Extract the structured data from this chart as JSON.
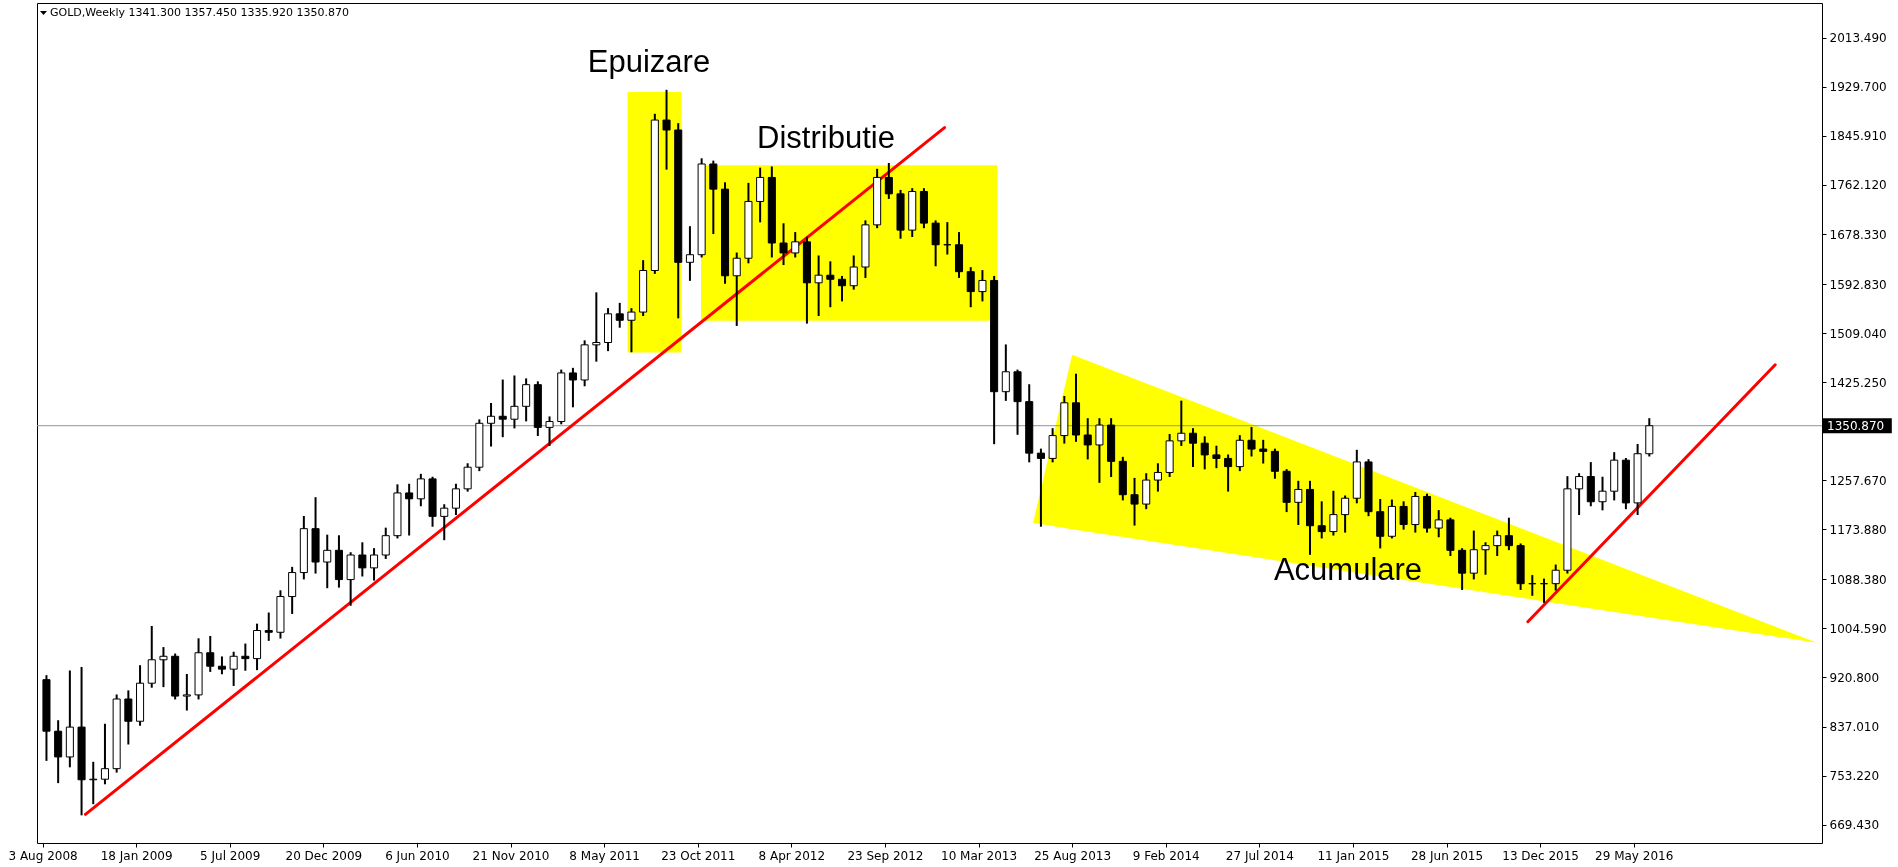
{
  "chart_data": {
    "type": "candlestick",
    "title": "GOLD,Weekly 1341.300 1357.450 1335.920 1350.870",
    "color": "#000000",
    "x": [
      "2008-08-10",
      "2008-08-31",
      "2008-09-21",
      "2008-10-12",
      "2008-11-02",
      "2008-11-23",
      "2008-12-14",
      "2009-01-04",
      "2009-01-25",
      "2009-02-15",
      "2009-03-08",
      "2009-03-29",
      "2009-04-19",
      "2009-05-10",
      "2009-05-31",
      "2009-06-21",
      "2009-07-12",
      "2009-08-02",
      "2009-08-23",
      "2009-09-13",
      "2009-10-04",
      "2009-10-25",
      "2009-11-15",
      "2009-12-06",
      "2009-12-27",
      "2010-01-17",
      "2010-02-07",
      "2010-02-28",
      "2010-03-21",
      "2010-04-11",
      "2010-05-02",
      "2010-05-23",
      "2010-06-13",
      "2010-07-04",
      "2010-07-25",
      "2010-08-15",
      "2010-09-05",
      "2010-09-26",
      "2010-10-17",
      "2010-11-07",
      "2010-11-28",
      "2010-12-19",
      "2011-01-09",
      "2011-01-30",
      "2011-02-20",
      "2011-03-13",
      "2011-04-03",
      "2011-04-24",
      "2011-05-15",
      "2011-06-05",
      "2011-06-26",
      "2011-07-17",
      "2011-08-07",
      "2011-08-28",
      "2011-09-18",
      "2011-10-09",
      "2011-10-30",
      "2011-11-20",
      "2011-12-11",
      "2012-01-01",
      "2012-01-22",
      "2012-02-12",
      "2012-03-04",
      "2012-03-25",
      "2012-04-15",
      "2012-05-06",
      "2012-05-27",
      "2012-06-17",
      "2012-07-08",
      "2012-07-29",
      "2012-08-19",
      "2012-09-09",
      "2012-09-30",
      "2012-10-21",
      "2012-11-11",
      "2012-12-02",
      "2012-12-23",
      "2013-01-13",
      "2013-02-03",
      "2013-02-24",
      "2013-03-17",
      "2013-04-07",
      "2013-04-28",
      "2013-05-19",
      "2013-06-09",
      "2013-06-30",
      "2013-07-21",
      "2013-08-11",
      "2013-09-01",
      "2013-09-22",
      "2013-10-13",
      "2013-11-03",
      "2013-11-24",
      "2013-12-15",
      "2014-01-05",
      "2014-01-26",
      "2014-02-16",
      "2014-03-09",
      "2014-03-30",
      "2014-04-20",
      "2014-05-11",
      "2014-06-01",
      "2014-06-22",
      "2014-07-13",
      "2014-08-03",
      "2014-08-24",
      "2014-09-14",
      "2014-10-05",
      "2014-10-26",
      "2014-11-16",
      "2014-12-07",
      "2014-12-28",
      "2015-01-18",
      "2015-02-08",
      "2015-03-01",
      "2015-03-22",
      "2015-04-12",
      "2015-05-03",
      "2015-05-24",
      "2015-06-14",
      "2015-07-05",
      "2015-07-26",
      "2015-08-16",
      "2015-09-06",
      "2015-09-27",
      "2015-10-18",
      "2015-11-08",
      "2015-11-29",
      "2015-12-20",
      "2016-01-10",
      "2016-01-31",
      "2016-02-21",
      "2016-03-13",
      "2016-04-03",
      "2016-04-24",
      "2016-05-15",
      "2016-06-05",
      "2016-06-26"
    ],
    "ohlc": [
      [
        917,
        923,
        780,
        829
      ],
      [
        829,
        846,
        742,
        785
      ],
      [
        785,
        931,
        769,
        836
      ],
      [
        836,
        937,
        687,
        746
      ],
      [
        746,
        775,
        706,
        747
      ],
      [
        747,
        840,
        740,
        765
      ],
      [
        765,
        890,
        760,
        884
      ],
      [
        884,
        897,
        808,
        846
      ],
      [
        846,
        940,
        840,
        911
      ],
      [
        911,
        1007,
        905,
        951
      ],
      [
        951,
        971,
        906,
        957
      ],
      [
        957,
        960,
        885,
        889
      ],
      [
        889,
        925,
        866,
        891
      ],
      [
        891,
        986,
        885,
        963
      ],
      [
        963,
        990,
        932,
        940
      ],
      [
        940,
        955,
        928,
        935
      ],
      [
        935,
        963,
        908,
        957
      ],
      [
        957,
        977,
        934,
        953
      ],
      [
        953,
        1011,
        935,
        1001
      ],
      [
        1001,
        1030,
        985,
        998
      ],
      [
        998,
        1068,
        989,
        1059
      ],
      [
        1059,
        1108,
        1031,
        1100
      ],
      [
        1100,
        1195,
        1090,
        1175
      ],
      [
        1175,
        1227,
        1100,
        1118
      ],
      [
        1118,
        1163,
        1075,
        1138
      ],
      [
        1138,
        1162,
        1076,
        1088
      ],
      [
        1088,
        1133,
        1045,
        1130
      ],
      [
        1130,
        1150,
        1095,
        1108
      ],
      [
        1108,
        1140,
        1088,
        1130
      ],
      [
        1130,
        1175,
        1125,
        1163
      ],
      [
        1163,
        1249,
        1160,
        1236
      ],
      [
        1236,
        1250,
        1165,
        1226
      ],
      [
        1226,
        1267,
        1215,
        1260
      ],
      [
        1260,
        1262,
        1180,
        1196
      ],
      [
        1196,
        1215,
        1157,
        1210
      ],
      [
        1210,
        1250,
        1200,
        1243
      ],
      [
        1243,
        1285,
        1240,
        1280
      ],
      [
        1280,
        1360,
        1275,
        1355
      ],
      [
        1355,
        1388,
        1317,
        1367
      ],
      [
        1367,
        1428,
        1333,
        1362
      ],
      [
        1362,
        1435,
        1348,
        1384
      ],
      [
        1384,
        1430,
        1360,
        1421
      ],
      [
        1421,
        1425,
        1335,
        1348
      ],
      [
        1348,
        1365,
        1318,
        1358
      ],
      [
        1358,
        1445,
        1355,
        1441
      ],
      [
        1441,
        1448,
        1384,
        1429
      ],
      [
        1429,
        1495,
        1420,
        1489
      ],
      [
        1489,
        1577,
        1462,
        1493
      ],
      [
        1493,
        1550,
        1480,
        1542
      ],
      [
        1542,
        1559,
        1520,
        1531
      ],
      [
        1531,
        1550,
        1478,
        1545
      ],
      [
        1545,
        1632,
        1540,
        1616
      ],
      [
        1616,
        1882,
        1612,
        1873
      ],
      [
        1873,
        1923,
        1790,
        1856
      ],
      [
        1856,
        1866,
        1536,
        1630
      ],
      [
        1630,
        1690,
        1600,
        1643
      ],
      [
        1643,
        1806,
        1640,
        1798
      ],
      [
        1798,
        1802,
        1680,
        1755
      ],
      [
        1755,
        1765,
        1595,
        1607
      ],
      [
        1607,
        1645,
        1523,
        1637
      ],
      [
        1637,
        1764,
        1630,
        1734
      ],
      [
        1734,
        1790,
        1700,
        1775
      ],
      [
        1775,
        1792,
        1640,
        1663
      ],
      [
        1663,
        1695,
        1627,
        1646
      ],
      [
        1646,
        1680,
        1640,
        1665
      ],
      [
        1665,
        1672,
        1527,
        1595
      ],
      [
        1595,
        1640,
        1540,
        1608
      ],
      [
        1608,
        1630,
        1555,
        1601
      ],
      [
        1601,
        1605,
        1565,
        1590
      ],
      [
        1590,
        1640,
        1585,
        1622
      ],
      [
        1622,
        1700,
        1605,
        1694
      ],
      [
        1694,
        1788,
        1690,
        1775
      ],
      [
        1775,
        1798,
        1740,
        1747
      ],
      [
        1747,
        1752,
        1672,
        1685
      ],
      [
        1685,
        1755,
        1675,
        1751
      ],
      [
        1751,
        1755,
        1690,
        1697
      ],
      [
        1697,
        1700,
        1625,
        1660
      ],
      [
        1660,
        1697,
        1645,
        1660
      ],
      [
        1660,
        1680,
        1605,
        1614
      ],
      [
        1614,
        1620,
        1555,
        1580
      ],
      [
        1580,
        1615,
        1565,
        1599
      ],
      [
        1599,
        1605,
        1321,
        1409
      ],
      [
        1409,
        1488,
        1395,
        1443
      ],
      [
        1443,
        1445,
        1337,
        1392
      ],
      [
        1392,
        1420,
        1290,
        1304
      ],
      [
        1304,
        1310,
        1180,
        1295
      ],
      [
        1295,
        1345,
        1290,
        1334
      ],
      [
        1334,
        1400,
        1322,
        1390
      ],
      [
        1390,
        1438,
        1325,
        1335
      ],
      [
        1335,
        1362,
        1295,
        1318
      ],
      [
        1318,
        1362,
        1255,
        1352
      ],
      [
        1352,
        1362,
        1265,
        1290
      ],
      [
        1290,
        1296,
        1225,
        1233
      ],
      [
        1233,
        1260,
        1182,
        1217
      ],
      [
        1217,
        1268,
        1210,
        1258
      ],
      [
        1258,
        1285,
        1240,
        1271
      ],
      [
        1271,
        1335,
        1265,
        1325
      ],
      [
        1325,
        1392,
        1318,
        1338
      ],
      [
        1338,
        1345,
        1282,
        1321
      ],
      [
        1321,
        1331,
        1278,
        1301
      ],
      [
        1301,
        1315,
        1280,
        1295
      ],
      [
        1295,
        1300,
        1240,
        1281
      ],
      [
        1281,
        1333,
        1275,
        1326
      ],
      [
        1326,
        1347,
        1300,
        1311
      ],
      [
        1311,
        1325,
        1288,
        1307
      ],
      [
        1307,
        1310,
        1262,
        1273
      ],
      [
        1273,
        1275,
        1205,
        1220
      ],
      [
        1220,
        1255,
        1183,
        1242
      ],
      [
        1242,
        1255,
        1132,
        1180
      ],
      [
        1180,
        1220,
        1160,
        1170
      ],
      [
        1170,
        1238,
        1165,
        1199
      ],
      [
        1199,
        1230,
        1170,
        1227
      ],
      [
        1227,
        1308,
        1220,
        1289
      ],
      [
        1289,
        1292,
        1198,
        1204
      ],
      [
        1204,
        1224,
        1143,
        1162
      ],
      [
        1162,
        1223,
        1160,
        1213
      ],
      [
        1213,
        1220,
        1175,
        1182
      ],
      [
        1182,
        1236,
        1170,
        1230
      ],
      [
        1230,
        1233,
        1170,
        1176
      ],
      [
        1176,
        1205,
        1162,
        1190
      ],
      [
        1190,
        1192,
        1130,
        1138
      ],
      [
        1138,
        1140,
        1072,
        1099
      ],
      [
        1099,
        1170,
        1090,
        1139
      ],
      [
        1139,
        1150,
        1098,
        1146
      ],
      [
        1146,
        1170,
        1130,
        1163
      ],
      [
        1163,
        1192,
        1140,
        1146
      ],
      [
        1146,
        1148,
        1072,
        1081
      ],
      [
        1081,
        1094,
        1062,
        1081
      ],
      [
        1081,
        1088,
        1050,
        1081
      ],
      [
        1081,
        1112,
        1071,
        1104
      ],
      [
        1104,
        1263,
        1100,
        1243
      ],
      [
        1243,
        1268,
        1200,
        1264
      ],
      [
        1264,
        1287,
        1215,
        1221
      ],
      [
        1221,
        1262,
        1208,
        1239
      ],
      [
        1239,
        1304,
        1225,
        1292
      ],
      [
        1292,
        1294,
        1210,
        1219
      ],
      [
        1219,
        1318,
        1200,
        1303
      ],
      [
        1303,
        1362,
        1300,
        1350.87
      ]
    ],
    "series": [
      {
        "type": "area",
        "color": "#ffff00",
        "x": [
          "2011-06-19",
          "2011-09-24"
        ],
        "values": [
          null,
          null
        ],
        "lower": [
          1476,
          1476
        ],
        "upper": [
          1921,
          1921
        ]
      },
      {
        "type": "area",
        "color": "#ffff00",
        "x": [
          "2011-10-29",
          "2013-04-13"
        ],
        "values": [
          null,
          null
        ],
        "lower": [
          1530,
          1530
        ],
        "upper": [
          1796,
          1796
        ]
      },
      {
        "type": "area",
        "color": "#ffff00",
        "x": [
          "2013-06-16",
          "2013-08-25",
          "2017-04-23"
        ],
        "values": [
          null,
          null,
          null
        ],
        "lower": [
          1185,
          1174,
          980
        ],
        "upper": [
          1185,
          1472,
          980
        ]
      },
      {
        "type": "line",
        "color": "#ff0000",
        "x": [
          "2008-10-19",
          "2013-01-08"
        ],
        "values": [
          687,
          1860
        ]
      },
      {
        "type": "line",
        "color": "#ff0000",
        "x": [
          "2015-11-21",
          "2017-02-07"
        ],
        "values": [
          1016,
          1455
        ]
      }
    ],
    "annotations": [
      "Epuizare",
      "Distributie",
      "Acumulare"
    ],
    "ref_lines": [
      {
        "axis": "y",
        "value": 1350.87,
        "label": "1350.870",
        "color": "#8a96a3"
      }
    ],
    "xlim": [
      "2008-08-02",
      "2017-04-23"
    ],
    "ylim": [
      638,
      2073
    ],
    "xticks": [
      {
        "value": "2008-08-03",
        "label": "3 Aug 2008"
      },
      {
        "value": "2009-01-18",
        "label": "18 Jan 2009"
      },
      {
        "value": "2009-07-05",
        "label": "5 Jul 2009"
      },
      {
        "value": "2009-12-20",
        "label": "20 Dec 2009"
      },
      {
        "value": "2010-06-06",
        "label": "6 Jun 2010"
      },
      {
        "value": "2010-11-21",
        "label": "21 Nov 2010"
      },
      {
        "value": "2011-05-08",
        "label": "8 May 2011"
      },
      {
        "value": "2011-10-23",
        "label": "23 Oct 2011"
      },
      {
        "value": "2012-04-08",
        "label": "8 Apr 2012"
      },
      {
        "value": "2012-09-23",
        "label": "23 Sep 2012"
      },
      {
        "value": "2013-03-10",
        "label": "10 Mar 2013"
      },
      {
        "value": "2013-08-25",
        "label": "25 Aug 2013"
      },
      {
        "value": "2014-02-09",
        "label": "9 Feb 2014"
      },
      {
        "value": "2014-07-27",
        "label": "27 Jul 2014"
      },
      {
        "value": "2015-01-11",
        "label": "11 Jan 2015"
      },
      {
        "value": "2015-06-28",
        "label": "28 Jun 2015"
      },
      {
        "value": "2015-12-13",
        "label": "13 Dec 2015"
      },
      {
        "value": "2016-05-29",
        "label": "29 May 2016"
      }
    ],
    "yticks": [
      {
        "value": 669.43,
        "label": "669.430"
      },
      {
        "value": 753.22,
        "label": "753.220"
      },
      {
        "value": 837.01,
        "label": "837.010"
      },
      {
        "value": 920.8,
        "label": "920.800"
      },
      {
        "value": 1004.59,
        "label": "1004.590"
      },
      {
        "value": 1088.38,
        "label": "1088.380"
      },
      {
        "value": 1173.88,
        "label": "1173.880"
      },
      {
        "value": 1257.67,
        "label": "1257.670"
      },
      {
        "value": 1425.25,
        "label": "1425.250"
      },
      {
        "value": 1509.04,
        "label": "1509.040"
      },
      {
        "value": 1592.83,
        "label": "1592.830"
      },
      {
        "value": 1678.33,
        "label": "1678.330"
      },
      {
        "value": 1762.12,
        "label": "1762.120"
      },
      {
        "value": 1845.91,
        "label": "1845.910"
      },
      {
        "value": 1929.7,
        "label": "1929.700"
      },
      {
        "value": 2013.49,
        "label": "2013.490"
      }
    ]
  }
}
